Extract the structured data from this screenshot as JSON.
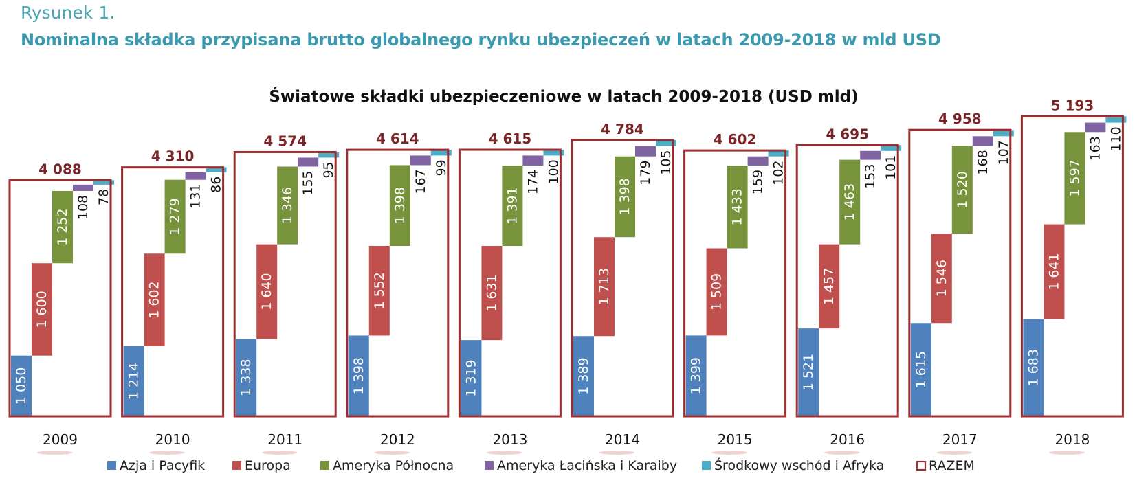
{
  "figure": {
    "label": "Rysunek 1.",
    "title": "Nominalna składka przypisana brutto globalnego rynku ubezpieczeń w latach 2009-2018 w mld USD"
  },
  "chart_data": {
    "type": "bar",
    "subtype": "waterfall-stacked",
    "title": "Światowe składki ubezpieczeniowe w latach  2009-2018 (USD mld)",
    "categories": [
      "2009",
      "2010",
      "2011",
      "2012",
      "2013",
      "2014",
      "2015",
      "2016",
      "2017",
      "2018"
    ],
    "series": [
      {
        "name": "Azja i Pacyfik",
        "color": "#4f81bd",
        "values": [
          1050,
          1214,
          1338,
          1398,
          1319,
          1389,
          1399,
          1521,
          1615,
          1683
        ],
        "labels": [
          "1 050",
          "1 214",
          "1 338",
          "1 398",
          "1 319",
          "1 389",
          "1 399",
          "1 521",
          "1 615",
          "1 683"
        ]
      },
      {
        "name": "Europa",
        "color": "#c0504d",
        "values": [
          1600,
          1602,
          1640,
          1552,
          1631,
          1713,
          1509,
          1457,
          1546,
          1641
        ],
        "labels": [
          "1 600",
          "1 602",
          "1 640",
          "1 552",
          "1 631",
          "1 713",
          "1 509",
          "1 457",
          "1 546",
          "1 641"
        ]
      },
      {
        "name": "Ameryka Północna",
        "color": "#77933c",
        "values": [
          1252,
          1279,
          1346,
          1398,
          1391,
          1398,
          1433,
          1463,
          1520,
          1597
        ],
        "labels": [
          "1 252",
          "1 279",
          "1 346",
          "1 398",
          "1 391",
          "1 398",
          "1 433",
          "1 463",
          "1 520",
          "1 597"
        ]
      },
      {
        "name": "Ameryka Łacińska i Karaiby",
        "color": "#8064a2",
        "values": [
          108,
          131,
          155,
          167,
          174,
          179,
          159,
          153,
          168,
          163
        ],
        "labels": [
          "108",
          "131",
          "155",
          "167",
          "174",
          "179",
          "159",
          "153",
          "168",
          "163"
        ]
      },
      {
        "name": "Środkowy wschód i Afryka",
        "color": "#4bacc6",
        "values": [
          78,
          86,
          95,
          99,
          100,
          105,
          102,
          101,
          107,
          110
        ],
        "labels": [
          "78",
          "86",
          "95",
          "99",
          "100",
          "105",
          "102",
          "101",
          "107",
          "110"
        ]
      }
    ],
    "totals": {
      "name": "RAZEM",
      "color": "#9b2d30",
      "values": [
        4088,
        4310,
        4574,
        4614,
        4615,
        4784,
        4602,
        4695,
        4958,
        5193
      ],
      "labels": [
        "4 088",
        "4 310",
        "4 574",
        "4 614",
        "4 615",
        "4 784",
        "4 602",
        "4 695",
        "4 958",
        "5 193"
      ]
    },
    "legend_position": "bottom",
    "grid": false
  }
}
